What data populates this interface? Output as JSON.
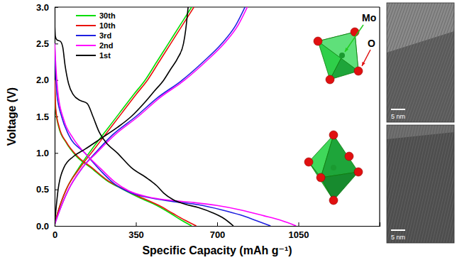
{
  "chart_data": {
    "type": "line",
    "xlabel": "Specific Capacity (mAh g⁻¹)",
    "ylabel": "Voltage (V)",
    "xlim": [
      0,
      1400
    ],
    "ylim": [
      0,
      3.0
    ],
    "xticks": [
      0,
      350,
      700,
      1050
    ],
    "yticks": [
      {
        "value": 0,
        "label": "0.0"
      },
      {
        "value": 0.5,
        "label": "0.5"
      },
      {
        "value": 1,
        "label": "1.0"
      },
      {
        "value": 1.5,
        "label": "1.5"
      },
      {
        "value": 2,
        "label": "2.0"
      },
      {
        "value": 2.5,
        "label": "2.5"
      },
      {
        "value": 3,
        "label": "3.0"
      }
    ],
    "legend": "upper left",
    "annotations": [
      "Mo",
      "O",
      "5 nm",
      "5 nm"
    ],
    "series": [
      {
        "name": "30th",
        "color": "#00dd00",
        "x": [
          0,
          4,
          18,
          48,
          95,
          155,
          225,
          295,
          370,
          440,
          500,
          545,
          590,
          null,
          0,
          15,
          50,
          105,
          160,
          220,
          280,
          340,
          390,
          440,
          490,
          540,
          590
        ],
        "values": [
          2.0,
          1.6,
          1.35,
          1.15,
          0.95,
          0.8,
          0.62,
          0.5,
          0.38,
          0.28,
          0.17,
          0.08,
          0.0,
          null,
          0.02,
          0.2,
          0.5,
          0.8,
          1.05,
          1.3,
          1.55,
          1.8,
          2.0,
          2.25,
          2.5,
          2.75,
          3.0
        ]
      },
      {
        "name": "10th",
        "color": "#e8120c",
        "x": [
          0,
          5,
          20,
          50,
          100,
          160,
          230,
          300,
          380,
          450,
          510,
          560,
          610,
          null,
          0,
          15,
          50,
          110,
          170,
          230,
          290,
          350,
          400,
          450,
          500,
          550,
          600
        ],
        "values": [
          2.0,
          1.6,
          1.35,
          1.15,
          0.95,
          0.8,
          0.62,
          0.5,
          0.38,
          0.28,
          0.17,
          0.08,
          0.0,
          null,
          0.02,
          0.2,
          0.5,
          0.8,
          1.05,
          1.3,
          1.55,
          1.8,
          2.0,
          2.25,
          2.5,
          2.75,
          3.0
        ]
      },
      {
        "name": "3rd",
        "color": "#1f1fe0",
        "x": [
          0,
          3,
          10,
          30,
          60,
          130,
          200,
          260,
          330,
          420,
          520,
          620,
          720,
          800,
          870,
          930,
          null,
          0,
          20,
          60,
          120,
          175,
          250,
          350,
          440,
          550,
          640,
          720,
          780,
          820
        ],
        "values": [
          2.5,
          2.2,
          1.8,
          1.5,
          1.25,
          1.0,
          0.75,
          0.57,
          0.45,
          0.38,
          0.33,
          0.29,
          0.22,
          0.15,
          0.07,
          0.0,
          null,
          0.02,
          0.2,
          0.5,
          0.8,
          1.0,
          1.25,
          1.5,
          1.75,
          2.0,
          2.25,
          2.5,
          2.75,
          3.0
        ]
      },
      {
        "name": "2nd",
        "color": "#ff00ff",
        "x": [
          0,
          5,
          15,
          40,
          80,
          130,
          200,
          260,
          320,
          400,
          500,
          600,
          700,
          800,
          900,
          980,
          1040,
          null,
          0,
          20,
          60,
          120,
          180,
          260,
          360,
          450,
          560,
          650,
          730,
          790,
          830
        ],
        "values": [
          2.5,
          2.2,
          1.8,
          1.45,
          1.2,
          1.0,
          0.78,
          0.6,
          0.48,
          0.4,
          0.35,
          0.32,
          0.28,
          0.22,
          0.14,
          0.07,
          0.0,
          null,
          0.02,
          0.2,
          0.5,
          0.8,
          1.0,
          1.25,
          1.5,
          1.75,
          2.0,
          2.25,
          2.5,
          2.75,
          3.0
        ]
      },
      {
        "name": "1st",
        "color": "#000000",
        "x": [
          0,
          3,
          10,
          25,
          35,
          45,
          60,
          80,
          110,
          140,
          165,
          190,
          220,
          270,
          330,
          400,
          440,
          470,
          510,
          560,
          620,
          680,
          730,
          770,
          null,
          0,
          5,
          15,
          40,
          80,
          130,
          200,
          270,
          330,
          390,
          430,
          470,
          500,
          530,
          555,
          565,
          575
        ],
        "values": [
          2.78,
          2.6,
          2.55,
          2.53,
          2.45,
          2.2,
          1.95,
          1.8,
          1.72,
          1.68,
          1.5,
          1.3,
          1.15,
          1.0,
          0.8,
          0.65,
          0.55,
          0.45,
          0.36,
          0.3,
          0.25,
          0.18,
          0.1,
          0.0,
          null,
          0.02,
          0.2,
          0.5,
          0.8,
          0.95,
          1.05,
          1.2,
          1.35,
          1.5,
          1.7,
          1.85,
          2.0,
          2.15,
          2.3,
          2.5,
          2.7,
          3.0
        ]
      }
    ]
  }
}
